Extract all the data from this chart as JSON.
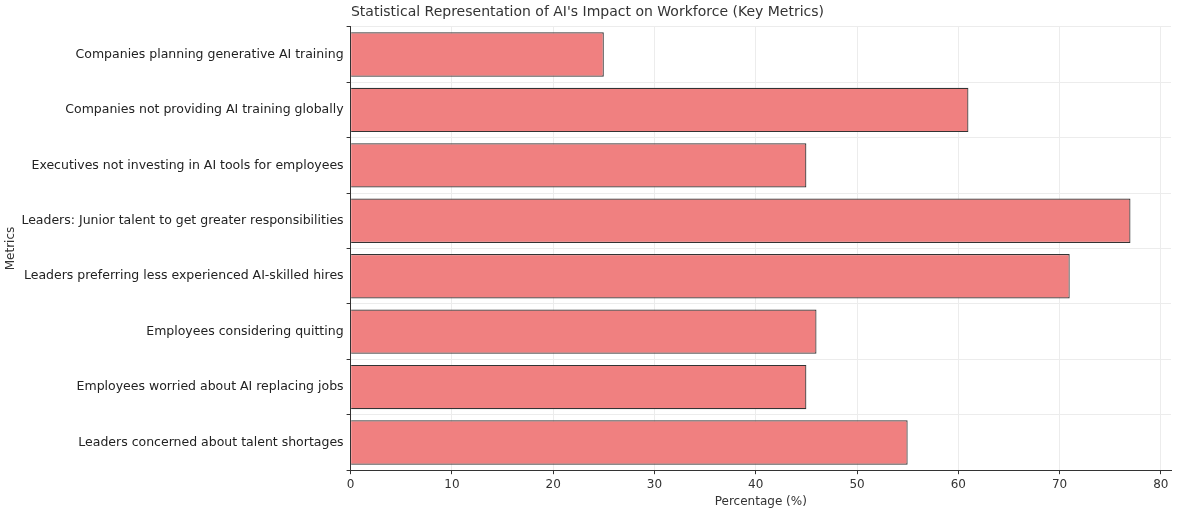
{
  "chart_data": {
    "type": "bar",
    "orientation": "horizontal",
    "title": "Statistical Representation of AI's Impact on Workforce (Key Metrics)",
    "xlabel": "Percentage (%)",
    "ylabel": "Metrics",
    "categories": [
      "Companies planning generative AI training",
      "Companies not providing AI training globally",
      "Executives not investing in AI tools for employees",
      "Leaders: Junior talent to get greater responsibilities",
      "Leaders preferring less experienced AI-skilled hires",
      "Employees considering quitting",
      "Employees worried about AI replacing jobs",
      "Leaders concerned about talent shortages"
    ],
    "values": [
      25,
      61,
      45,
      77,
      71,
      46,
      45,
      55
    ],
    "color": "#f08080",
    "xlim": [
      0,
      81
    ],
    "xticks": [
      0,
      10,
      20,
      30,
      40,
      50,
      60,
      70,
      80
    ],
    "grid": true
  }
}
